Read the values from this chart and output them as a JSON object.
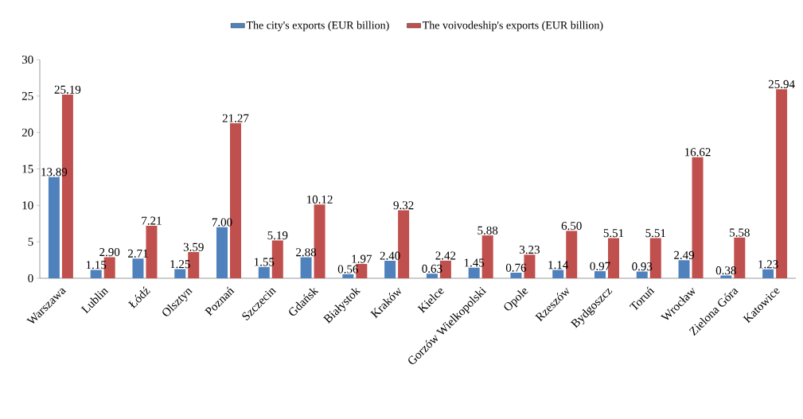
{
  "chart_data": {
    "type": "bar",
    "categories": [
      "Warszawa",
      "Lublin",
      "Łódź",
      "Olsztyn",
      "Poznań",
      "Szczecin",
      "Gdańsk",
      "Białystok",
      "Kraków",
      "Kielce",
      "Gorzów Wielkopolski",
      "Opole",
      "Rzeszów",
      "Bydgoszcz",
      "Toruń",
      "Wrocław",
      "Zielona Góra",
      "Katowice"
    ],
    "series": [
      {
        "name": "The city's exports (EUR billion)",
        "color": "#4f81bd",
        "values": [
          13.89,
          1.15,
          2.71,
          1.25,
          7.0,
          1.55,
          2.88,
          0.56,
          2.4,
          0.63,
          1.45,
          0.76,
          1.14,
          0.97,
          0.93,
          2.49,
          0.38,
          1.23
        ],
        "value_labels": [
          "13.89",
          "1.15",
          "2.71",
          "1.25",
          "7.00",
          "1.55",
          "2.88",
          "0.56",
          "2.40",
          "0.63",
          "1.45",
          "0.76",
          "1.14",
          "0.97",
          "0.93",
          "2.49",
          "0.38",
          "1.23"
        ]
      },
      {
        "name": "The voivodeship's exports (EUR billion)",
        "color": "#c0504d",
        "values": [
          25.19,
          2.9,
          7.21,
          3.59,
          21.27,
          5.19,
          10.12,
          1.97,
          9.32,
          2.42,
          5.88,
          3.23,
          6.5,
          5.51,
          5.51,
          16.62,
          5.58,
          25.94
        ],
        "value_labels": [
          "25.19",
          "2.90",
          "7.21",
          "3.59",
          "21.27",
          "5.19",
          "10.12",
          "1.97",
          "9.32",
          "2.42",
          "5.88",
          "3.23",
          "6.50",
          "5.51",
          "5.51",
          "16.62",
          "5.58",
          "25.94"
        ]
      }
    ],
    "ylim": [
      0,
      30
    ],
    "yticks": [
      0,
      5,
      10,
      15,
      20,
      25,
      30
    ],
    "grid": false,
    "legend": "top"
  }
}
